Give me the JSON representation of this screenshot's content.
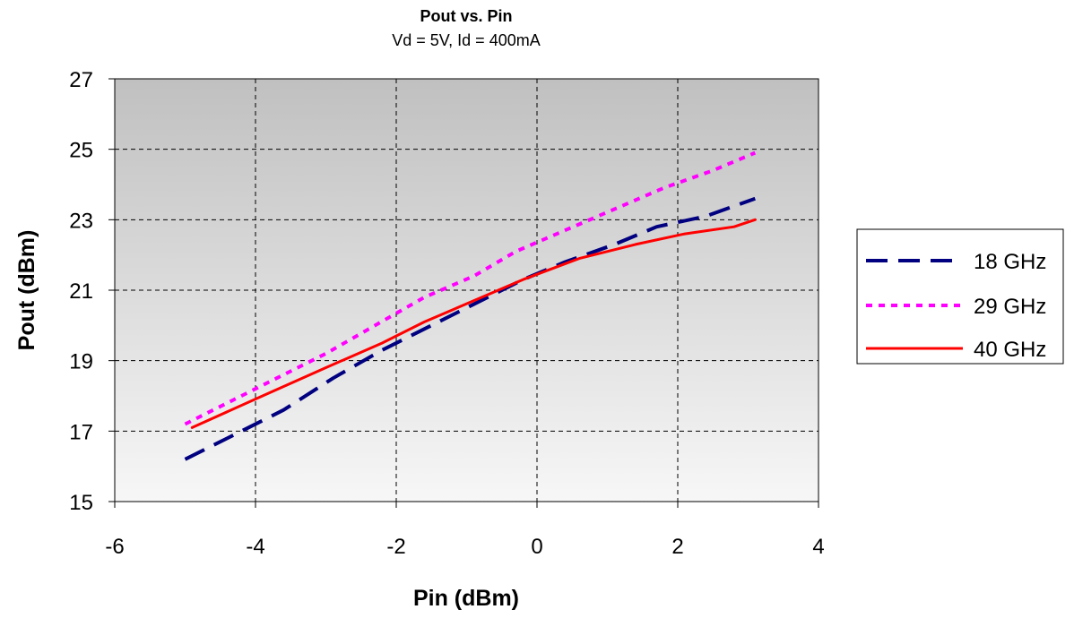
{
  "chart_data": {
    "type": "line",
    "title": "Pout vs. Pin",
    "subtitle": "Vd = 5V, Id = 400mA",
    "xlabel": "Pin (dBm)",
    "ylabel": "Pout (dBm)",
    "xlim": [
      -6,
      4
    ],
    "ylim": [
      15,
      27
    ],
    "x_ticks": [
      -6,
      -4,
      -2,
      0,
      2,
      4
    ],
    "y_ticks": [
      15,
      17,
      19,
      21,
      23,
      25,
      27
    ],
    "grid": true,
    "legend_position": "right",
    "plot_background": {
      "top": "#c0c0c0",
      "bottom": "#f7f7f7"
    },
    "series": [
      {
        "name": "18 GHz",
        "color": "#000080",
        "style": "dashed",
        "points": [
          {
            "x": -5.0,
            "y": 16.2
          },
          {
            "x": -4.3,
            "y": 16.9
          },
          {
            "x": -3.6,
            "y": 17.6
          },
          {
            "x": -2.9,
            "y": 18.5
          },
          {
            "x": -2.2,
            "y": 19.3
          },
          {
            "x": -1.5,
            "y": 20.0
          },
          {
            "x": -0.8,
            "y": 20.7
          },
          {
            "x": -0.2,
            "y": 21.3
          },
          {
            "x": 0.4,
            "y": 21.8
          },
          {
            "x": 1.1,
            "y": 22.3
          },
          {
            "x": 1.7,
            "y": 22.8
          },
          {
            "x": 2.4,
            "y": 23.1
          },
          {
            "x": 3.1,
            "y": 23.6
          }
        ]
      },
      {
        "name": "29 GHz",
        "color": "#ff00ff",
        "style": "dotted",
        "points": [
          {
            "x": -5.0,
            "y": 17.2
          },
          {
            "x": -4.4,
            "y": 17.8
          },
          {
            "x": -3.7,
            "y": 18.5
          },
          {
            "x": -3.0,
            "y": 19.2
          },
          {
            "x": -2.3,
            "y": 20.0
          },
          {
            "x": -1.6,
            "y": 20.8
          },
          {
            "x": -0.9,
            "y": 21.4
          },
          {
            "x": -0.3,
            "y": 22.1
          },
          {
            "x": 0.4,
            "y": 22.7
          },
          {
            "x": 1.1,
            "y": 23.3
          },
          {
            "x": 1.8,
            "y": 23.9
          },
          {
            "x": 2.5,
            "y": 24.4
          },
          {
            "x": 3.1,
            "y": 24.9
          }
        ]
      },
      {
        "name": "40 GHz",
        "color": "#ff0000",
        "style": "solid",
        "points": [
          {
            "x": -4.9,
            "y": 17.1
          },
          {
            "x": -3.9,
            "y": 18.0
          },
          {
            "x": -3.0,
            "y": 18.8
          },
          {
            "x": -2.2,
            "y": 19.5
          },
          {
            "x": -1.6,
            "y": 20.1
          },
          {
            "x": -0.9,
            "y": 20.7
          },
          {
            "x": -0.2,
            "y": 21.3
          },
          {
            "x": 0.6,
            "y": 21.9
          },
          {
            "x": 1.4,
            "y": 22.3
          },
          {
            "x": 2.1,
            "y": 22.6
          },
          {
            "x": 2.8,
            "y": 22.8
          },
          {
            "x": 3.1,
            "y": 23.0
          }
        ]
      }
    ]
  }
}
